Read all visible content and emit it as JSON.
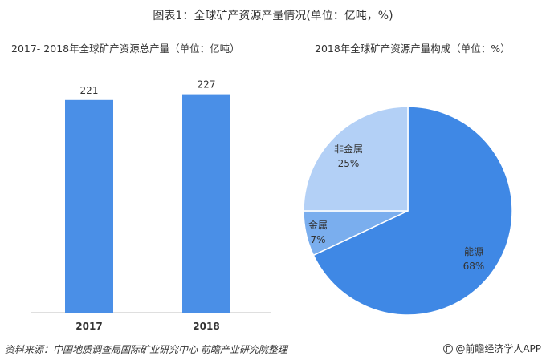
{
  "title": "图表1：全球矿产资源产量情况(单位：亿吨，%)",
  "footer": {
    "source": "资料来源：中国地质调查局国际矿业研究中心 前瞻产业研究院整理",
    "brand": "@前瞻经济学人APP",
    "brand_icon": "qianzhan-logo-icon"
  },
  "chart_data": [
    {
      "type": "bar",
      "title": "2017- 2018年全球矿产资源总产量（单位：亿吨）",
      "categories": [
        "2017",
        "2018"
      ],
      "values": [
        221,
        227
      ],
      "bar_color": "#4a8fe7",
      "grid": false,
      "legend": "none"
    },
    {
      "type": "pie",
      "title": "2018年全球矿产资源产量构成（单位：%）",
      "slices": [
        {
          "label": "能源",
          "value": 68,
          "display": "68%",
          "color": "#3f88e5"
        },
        {
          "label": "金属",
          "value": 7,
          "display": "7%",
          "color": "#7aaeee"
        },
        {
          "label": "非金属",
          "value": 25,
          "display": "25%",
          "color": "#b3d0f6"
        }
      ],
      "legend": "none"
    }
  ]
}
